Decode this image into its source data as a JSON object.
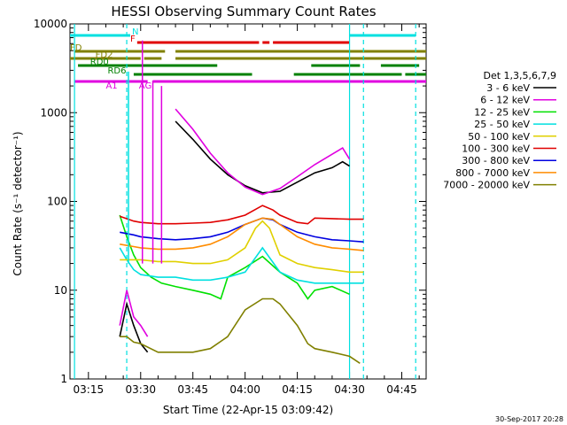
{
  "chart_data": {
    "type": "line",
    "title": "HESSI Observing Summary Count Rates",
    "xlabel": "Start Time (22-Apr-15 03:09:42)",
    "ylabel": "Count Rate (s⁻¹ detector⁻¹)",
    "x_ticks": [
      "03:15",
      "03:30",
      "03:45",
      "04:00",
      "04:15",
      "04:30",
      "04:45"
    ],
    "y_ticks": [
      "1",
      "10",
      "100",
      "1000",
      "10000"
    ],
    "y_scale": "log",
    "xlim": [
      "03:09:42",
      "04:52:00"
    ],
    "ylim": [
      1,
      10000
    ],
    "legend_title": "Det 1,3,5,6,7,9",
    "legend_position": "right",
    "timestamp": "30-Sep-2017 20:28",
    "series": [
      {
        "name": "3 - 6 keV",
        "color": "#000000",
        "points": [
          [
            "03:24",
            3
          ],
          [
            "03:26",
            7
          ],
          [
            "03:28",
            4
          ],
          [
            "03:30",
            2.5
          ],
          [
            "03:32",
            2
          ],
          [
            "03:33",
            null
          ],
          [
            "03:40",
            800
          ],
          [
            "03:45",
            500
          ],
          [
            "03:50",
            300
          ],
          [
            "03:55",
            200
          ],
          [
            "04:00",
            150
          ],
          [
            "04:05",
            125
          ],
          [
            "04:10",
            130
          ],
          [
            "04:15",
            165
          ],
          [
            "04:20",
            210
          ],
          [
            "04:25",
            240
          ],
          [
            "04:28",
            280
          ],
          [
            "04:30",
            250
          ],
          [
            "04:31",
            null
          ]
        ]
      },
      {
        "name": "6 - 12 keV",
        "color": "#e000e0",
        "points": [
          [
            "03:24",
            4
          ],
          [
            "03:26",
            10
          ],
          [
            "03:28",
            5
          ],
          [
            "03:30",
            4
          ],
          [
            "03:32",
            3
          ],
          [
            "03:33",
            null
          ],
          [
            "03:40",
            1100
          ],
          [
            "03:45",
            650
          ],
          [
            "03:50",
            350
          ],
          [
            "03:55",
            210
          ],
          [
            "04:00",
            145
          ],
          [
            "04:05",
            120
          ],
          [
            "04:10",
            140
          ],
          [
            "04:15",
            190
          ],
          [
            "04:20",
            260
          ],
          [
            "04:25",
            340
          ],
          [
            "04:28",
            400
          ],
          [
            "04:30",
            300
          ],
          [
            "04:31",
            null
          ]
        ]
      },
      {
        "name": "12 - 25 keV",
        "color": "#00e000",
        "points": [
          [
            "03:24",
            70
          ],
          [
            "03:26",
            40
          ],
          [
            "03:28",
            25
          ],
          [
            "03:30",
            18
          ],
          [
            "03:33",
            14
          ],
          [
            "03:36",
            12
          ],
          [
            "03:40",
            11
          ],
          [
            "03:45",
            10
          ],
          [
            "03:50",
            9
          ],
          [
            "03:53",
            8
          ],
          [
            "03:55",
            14
          ],
          [
            "04:00",
            18
          ],
          [
            "04:05",
            24
          ],
          [
            "04:10",
            16
          ],
          [
            "04:15",
            12
          ],
          [
            "04:18",
            8
          ],
          [
            "04:20",
            10
          ],
          [
            "04:25",
            11
          ],
          [
            "04:30",
            9
          ]
        ]
      },
      {
        "name": "25 - 50 keV",
        "color": "#00e0e0",
        "points": [
          [
            "03:24",
            30
          ],
          [
            "03:26",
            22
          ],
          [
            "03:28",
            17
          ],
          [
            "03:30",
            15
          ],
          [
            "03:35",
            14
          ],
          [
            "03:40",
            14
          ],
          [
            "03:45",
            13
          ],
          [
            "03:50",
            13
          ],
          [
            "03:55",
            14
          ],
          [
            "04:00",
            16
          ],
          [
            "04:05",
            30
          ],
          [
            "04:10",
            16
          ],
          [
            "04:15",
            13
          ],
          [
            "04:20",
            12
          ],
          [
            "04:25",
            12
          ],
          [
            "04:30",
            12
          ],
          [
            "04:34",
            12
          ]
        ]
      },
      {
        "name": "50 - 100 keV",
        "color": "#e0d000",
        "points": [
          [
            "03:24",
            22
          ],
          [
            "03:30",
            22
          ],
          [
            "03:35",
            21
          ],
          [
            "03:40",
            21
          ],
          [
            "03:45",
            20
          ],
          [
            "03:50",
            20
          ],
          [
            "03:55",
            22
          ],
          [
            "04:00",
            30
          ],
          [
            "04:03",
            50
          ],
          [
            "04:05",
            60
          ],
          [
            "04:07",
            50
          ],
          [
            "04:10",
            25
          ],
          [
            "04:15",
            20
          ],
          [
            "04:20",
            18
          ],
          [
            "04:25",
            17
          ],
          [
            "04:30",
            16
          ],
          [
            "04:34",
            16
          ]
        ]
      },
      {
        "name": "100 - 300 keV",
        "color": "#e00000",
        "points": [
          [
            "03:24",
            68
          ],
          [
            "03:28",
            60
          ],
          [
            "03:30",
            58
          ],
          [
            "03:35",
            56
          ],
          [
            "03:40",
            56
          ],
          [
            "03:45",
            57
          ],
          [
            "03:50",
            58
          ],
          [
            "03:55",
            62
          ],
          [
            "04:00",
            70
          ],
          [
            "04:05",
            90
          ],
          [
            "04:08",
            80
          ],
          [
            "04:10",
            70
          ],
          [
            "04:15",
            58
          ],
          [
            "04:18",
            56
          ],
          [
            "04:20",
            65
          ],
          [
            "04:25",
            64
          ],
          [
            "04:30",
            63
          ],
          [
            "04:34",
            63
          ]
        ]
      },
      {
        "name": "300 - 800 keV",
        "color": "#0000e0",
        "points": [
          [
            "03:24",
            45
          ],
          [
            "03:28",
            42
          ],
          [
            "03:30",
            40
          ],
          [
            "03:35",
            38
          ],
          [
            "03:40",
            37
          ],
          [
            "03:45",
            38
          ],
          [
            "03:50",
            40
          ],
          [
            "03:55",
            45
          ],
          [
            "04:00",
            55
          ],
          [
            "04:05",
            65
          ],
          [
            "04:08",
            62
          ],
          [
            "04:10",
            55
          ],
          [
            "04:15",
            45
          ],
          [
            "04:20",
            40
          ],
          [
            "04:25",
            37
          ],
          [
            "04:30",
            36
          ],
          [
            "04:34",
            35
          ]
        ]
      },
      {
        "name": "800 - 7000 keV",
        "color": "#ff8c00",
        "points": [
          [
            "03:24",
            33
          ],
          [
            "03:28",
            31
          ],
          [
            "03:30",
            30
          ],
          [
            "03:35",
            29
          ],
          [
            "03:40",
            29
          ],
          [
            "03:45",
            30
          ],
          [
            "03:50",
            33
          ],
          [
            "03:55",
            40
          ],
          [
            "04:00",
            55
          ],
          [
            "04:05",
            65
          ],
          [
            "04:08",
            63
          ],
          [
            "04:10",
            55
          ],
          [
            "04:15",
            40
          ],
          [
            "04:20",
            33
          ],
          [
            "04:25",
            30
          ],
          [
            "04:30",
            29
          ],
          [
            "04:34",
            28
          ]
        ]
      },
      {
        "name": "7000 - 20000 keV",
        "color": "#808000",
        "points": [
          [
            "03:24",
            3
          ],
          [
            "03:26",
            3
          ],
          [
            "03:28",
            2.6
          ],
          [
            "03:30",
            2.5
          ],
          [
            "03:35",
            2
          ],
          [
            "03:40",
            2
          ],
          [
            "03:45",
            2
          ],
          [
            "03:50",
            2.2
          ],
          [
            "03:55",
            3
          ],
          [
            "04:00",
            6
          ],
          [
            "04:05",
            8
          ],
          [
            "04:08",
            8
          ],
          [
            "04:10",
            7
          ],
          [
            "04:15",
            4
          ],
          [
            "04:18",
            2.5
          ],
          [
            "04:20",
            2.2
          ],
          [
            "04:25",
            2
          ],
          [
            "04:30",
            1.8
          ],
          [
            "04:33",
            1.5
          ]
        ]
      }
    ],
    "spikes": [
      {
        "time": "03:26:30",
        "value": 2900,
        "color": "#00e0e0"
      },
      {
        "time": "03:30:30",
        "value": 6500,
        "color": "#e000e0"
      },
      {
        "time": "03:33:30",
        "value": 2300,
        "color": "#e000e0"
      },
      {
        "time": "03:36:00",
        "value": 2000,
        "color": "#e000e0"
      }
    ],
    "vlines": [
      {
        "time": "03:11:00",
        "color": "#00e0e0",
        "style": "solid"
      },
      {
        "time": "03:26:00",
        "color": "#00e0e0",
        "style": "dashed"
      },
      {
        "time": "04:30:00",
        "color": "#00e0e0",
        "style": "solid"
      },
      {
        "time": "04:34:00",
        "color": "#00e0e0",
        "style": "dashed"
      },
      {
        "time": "04:49:00",
        "color": "#00e0e0",
        "style": "dashed"
      }
    ],
    "flags": [
      {
        "label": "N",
        "color": "#00e0e0",
        "label_time": "03:27:30",
        "segments": [
          [
            "03:09:42",
            "03:27:00"
          ],
          [
            "04:30:00",
            "04:49:00"
          ]
        ]
      },
      {
        "label": "F",
        "color": "#e00000",
        "label_time": "03:27:00",
        "segments": [
          [
            "03:29:00",
            "04:04:00"
          ],
          [
            "04:05:00",
            "04:07:00"
          ],
          [
            "04:08:00",
            "04:30:00"
          ]
        ]
      },
      {
        "label": "FD",
        "color": "#808000",
        "label_time": "03:09:42",
        "segments": [
          [
            "03:11:00",
            "03:37:00"
          ],
          [
            "03:40:00",
            "04:52:00"
          ]
        ]
      },
      {
        "label": "FD2",
        "color": "#808000",
        "label_time": "03:17:00",
        "segments": [
          [
            "03:09:42",
            "03:30:00"
          ],
          [
            "03:31:00",
            "03:36:00"
          ],
          [
            "03:40:00",
            "04:52:00"
          ]
        ]
      },
      {
        "label": "RD0",
        "color": "#008000",
        "label_time": "03:15:30",
        "segments": [
          [
            "03:12:00",
            "03:52:00"
          ],
          [
            "04:19:00",
            "04:33:00"
          ],
          [
            "04:39:00",
            "04:50:00"
          ]
        ]
      },
      {
        "label": "RD6",
        "color": "#008000",
        "label_time": "03:20:30",
        "segments": [
          [
            "03:28:00",
            "04:02:00"
          ],
          [
            "04:14:00",
            "04:45:00"
          ],
          [
            "04:46:00",
            "04:52:00"
          ]
        ]
      },
      {
        "label": "AG",
        "color": "#e000e0",
        "label_time": "03:29:30",
        "segments": [
          [
            "03:33:30",
            "03:34:30"
          ]
        ]
      },
      {
        "label": "A1",
        "color": "#e000e0",
        "label_time": "03:20:00",
        "segments": [
          [
            "03:11:00",
            "03:32:00"
          ],
          [
            "03:34:00",
            "04:52:00"
          ]
        ]
      }
    ]
  }
}
